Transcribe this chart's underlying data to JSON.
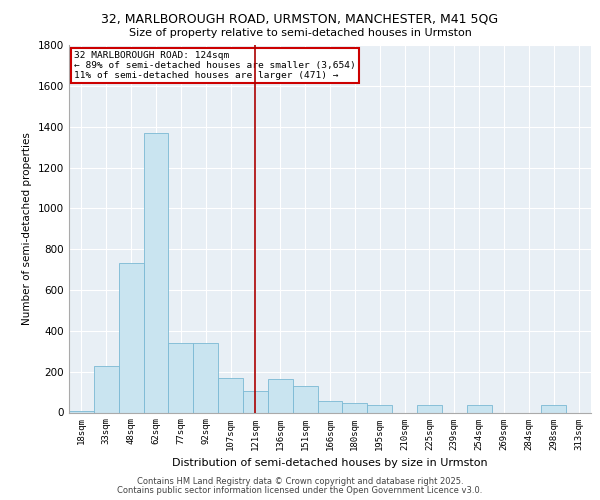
{
  "title_line1": "32, MARLBOROUGH ROAD, URMSTON, MANCHESTER, M41 5QG",
  "title_line2": "Size of property relative to semi-detached houses in Urmston",
  "xlabel": "Distribution of semi-detached houses by size in Urmston",
  "ylabel": "Number of semi-detached properties",
  "bin_labels": [
    "18sqm",
    "33sqm",
    "48sqm",
    "62sqm",
    "77sqm",
    "92sqm",
    "107sqm",
    "121sqm",
    "136sqm",
    "151sqm",
    "166sqm",
    "180sqm",
    "195sqm",
    "210sqm",
    "225sqm",
    "239sqm",
    "254sqm",
    "269sqm",
    "284sqm",
    "298sqm",
    "313sqm"
  ],
  "bar_values": [
    5,
    230,
    730,
    1370,
    340,
    340,
    170,
    105,
    165,
    130,
    55,
    45,
    35,
    0,
    35,
    0,
    35,
    0,
    0,
    35,
    0
  ],
  "bar_color": "#c9e4f0",
  "bar_edge_color": "#7ab8d4",
  "property_bin_index": 7,
  "annotation_line1": "32 MARLBOROUGH ROAD: 124sqm",
  "annotation_line2": "← 89% of semi-detached houses are smaller (3,654)",
  "annotation_line3": "11% of semi-detached houses are larger (471) →",
  "ylim": [
    0,
    1800
  ],
  "yticks": [
    0,
    200,
    400,
    600,
    800,
    1000,
    1200,
    1400,
    1600,
    1800
  ],
  "vline_color": "#aa0000",
  "annotation_box_edge_color": "#cc0000",
  "footer_line1": "Contains HM Land Registry data © Crown copyright and database right 2025.",
  "footer_line2": "Contains public sector information licensed under the Open Government Licence v3.0.",
  "bg_color": "#e8eff5",
  "grid_color": "#ffffff"
}
